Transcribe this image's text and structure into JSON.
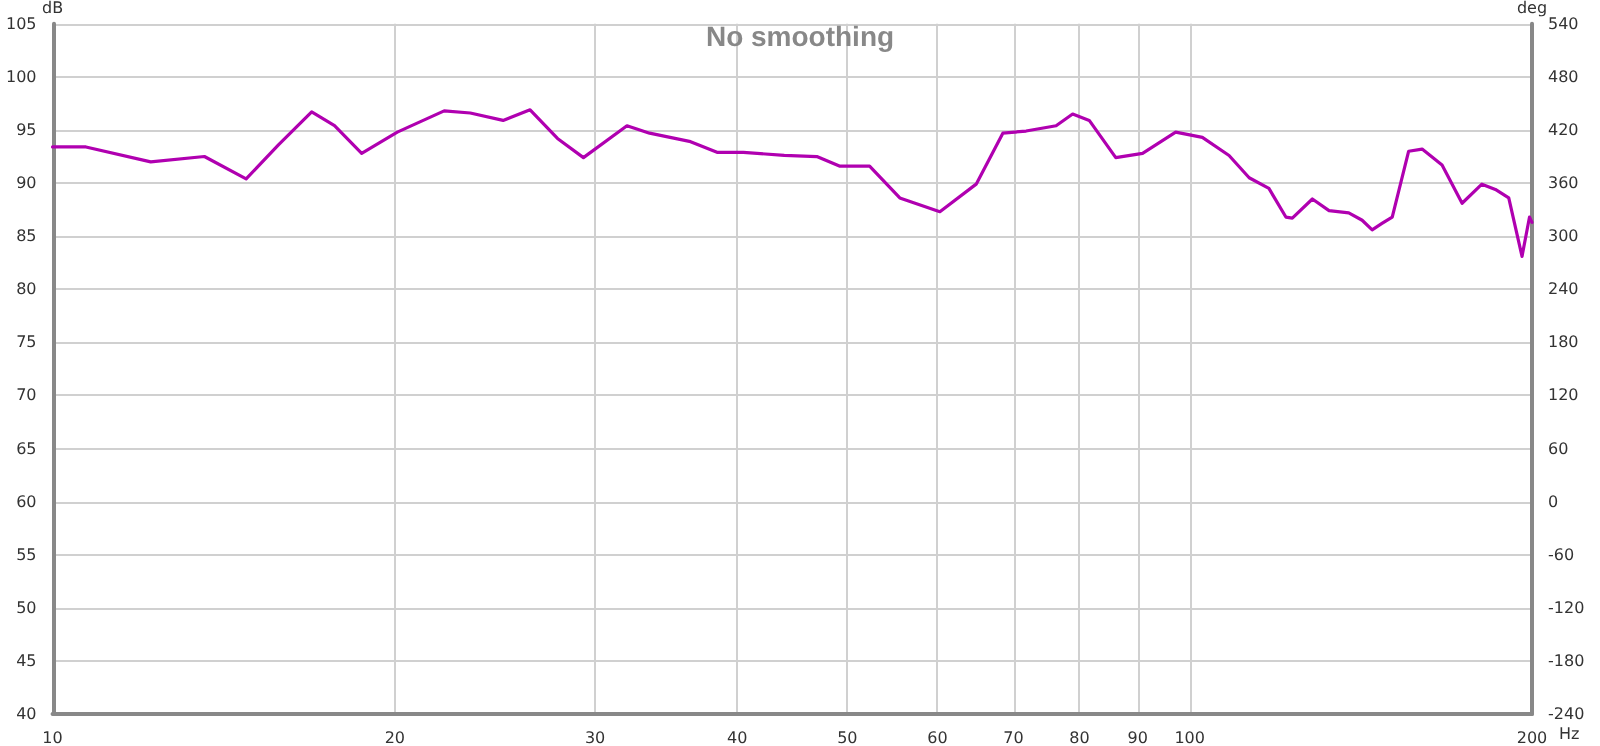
{
  "chart_data": {
    "type": "line",
    "title": "No smoothing",
    "xlabel": "Hz",
    "ylabel": "dB",
    "y2label": "deg",
    "log": "x",
    "grid": true,
    "marker": "none",
    "line_style": "solid",
    "xlim": [
      10,
      200
    ],
    "xticks": [
      10,
      20,
      30,
      40,
      50,
      60,
      70,
      80,
      90,
      100,
      200
    ],
    "ylim": [
      40,
      105
    ],
    "yticks": [
      40,
      45,
      50,
      55,
      60,
      65,
      70,
      75,
      80,
      85,
      90,
      95,
      100,
      105
    ],
    "y2lim": [
      -240,
      540
    ],
    "y2ticks": [
      -240,
      -180,
      -120,
      -60,
      0,
      60,
      120,
      180,
      240,
      300,
      360,
      420,
      480,
      540
    ],
    "series": [
      {
        "color": "#b000b0",
        "x": [
          10,
          10.7,
          12.2,
          13.6,
          14.8,
          15.8,
          16.9,
          17.7,
          18.7,
          20.1,
          22.1,
          23.3,
          24.9,
          26.3,
          27.8,
          29.3,
          32.0,
          33.5,
          36.4,
          38.4,
          40.5,
          44.0,
          47.0,
          49.2,
          52.3,
          55.6,
          60.3,
          64.9,
          68.5,
          71.8,
          76.3,
          78.9,
          81.6,
          86.1,
          90.9,
          97.2,
          102.6,
          108.3,
          112.8,
          117.4,
          121.5,
          123.1,
          128.2,
          132.6,
          138.0,
          141.8,
          144.7,
          147.6,
          150.7,
          155.8,
          160.1,
          166.7,
          173.6,
          180.7,
          185.7,
          190.8,
          196.0,
          199.0,
          200
        ],
        "values": [
          93.4,
          93.4,
          92.0,
          92.5,
          90.4,
          93.6,
          96.7,
          95.4,
          92.8,
          94.8,
          96.8,
          96.6,
          95.9,
          96.9,
          94.2,
          92.4,
          95.4,
          94.7,
          93.9,
          92.9,
          92.9,
          92.6,
          92.5,
          91.6,
          91.6,
          88.6,
          87.3,
          89.9,
          94.7,
          94.9,
          95.4,
          96.5,
          95.9,
          92.4,
          92.8,
          94.8,
          94.3,
          92.6,
          90.5,
          89.5,
          86.8,
          86.7,
          88.5,
          87.4,
          87.2,
          86.5,
          85.6,
          86.2,
          86.8,
          93.0,
          93.2,
          91.7,
          88.1,
          89.9,
          89.4,
          88.6,
          83.1,
          86.8,
          86.3
        ]
      }
    ]
  }
}
